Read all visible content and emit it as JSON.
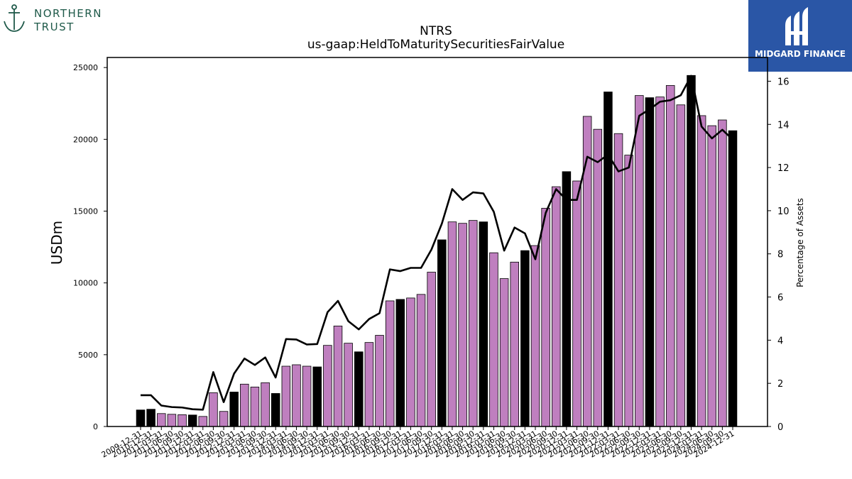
{
  "branding": {
    "left_logo_line1": "NORTHERN",
    "left_logo_line2": "TRUST",
    "right_logo_text": "MIDGARD FINANCE"
  },
  "chart_data": {
    "type": "bar",
    "title": "NTRS",
    "subtitle": "us-gaap:HeldToMaturitySecuritiesFairValue",
    "ylabel": "USDm",
    "y2label": "Percentage of Assets",
    "ylim": [
      0,
      25700
    ],
    "y2lim": [
      0,
      17.1
    ],
    "yticks": [
      0,
      5000,
      10000,
      15000,
      20000,
      25000
    ],
    "y2ticks": [
      0,
      2,
      4,
      6,
      8,
      10,
      12,
      14,
      16
    ],
    "colors": {
      "bar_default": "#bf7fbf",
      "bar_highlight": "#000000",
      "line": "#000000"
    },
    "categories": [
      "2009-12-31",
      "2010-12-31",
      "2011-03-31",
      "2011-06-30",
      "2011-09-30",
      "2011-12-31",
      "2012-03-31",
      "2012-06-30",
      "2012-09-30",
      "2012-12-31",
      "2013-03-31",
      "2013-06-30",
      "2013-09-30",
      "2013-12-31",
      "2014-03-31",
      "2014-06-30",
      "2014-09-30",
      "2014-12-31",
      "2015-03-31",
      "2015-06-30",
      "2015-09-30",
      "2015-12-31",
      "2016-03-31",
      "2016-06-30",
      "2016-09-30",
      "2016-12-31",
      "2017-03-31",
      "2017-06-30",
      "2017-09-30",
      "2017-12-31",
      "2018-03-31",
      "2018-06-30",
      "2018-09-30",
      "2018-12-31",
      "2019-03-31",
      "2019-06-30",
      "2019-09-30",
      "2019-12-31",
      "2020-03-31",
      "2020-06-30",
      "2020-09-30",
      "2020-12-31",
      "2021-03-31",
      "2021-06-30",
      "2021-09-30",
      "2021-12-31",
      "2022-03-31",
      "2022-06-30",
      "2022-09-30",
      "2022-12-31",
      "2023-03-31",
      "2023-06-30",
      "2023-09-30",
      "2023-12-31",
      "2024-03-31",
      "2024-06-30",
      "2024-09-30",
      "2024-12-31"
    ],
    "highlight": [
      true,
      true,
      false,
      false,
      false,
      true,
      false,
      false,
      false,
      true,
      false,
      false,
      false,
      true,
      false,
      false,
      false,
      true,
      false,
      false,
      false,
      true,
      false,
      false,
      false,
      true,
      false,
      false,
      false,
      true,
      false,
      false,
      false,
      true,
      false,
      false,
      false,
      true,
      false,
      false,
      false,
      true,
      false,
      false,
      false,
      true,
      false,
      false,
      false,
      true,
      false,
      false,
      false,
      true,
      false,
      false,
      false,
      true
    ],
    "series": [
      {
        "name": "USDm",
        "type": "bar",
        "axis": "left",
        "values": [
          1150,
          1200,
          900,
          850,
          820,
          800,
          700,
          2350,
          1050,
          2400,
          2950,
          2750,
          3050,
          2300,
          4200,
          4300,
          4200,
          4150,
          5650,
          7000,
          5800,
          5200,
          5850,
          6350,
          8750,
          8850,
          8950,
          9200,
          10750,
          13000,
          14250,
          14150,
          14350,
          14250,
          12100,
          10300,
          11450,
          12250,
          12600,
          15200,
          16700,
          17750,
          17100,
          21600,
          20700,
          23300,
          20400,
          18900,
          23050,
          22900,
          22950,
          23750,
          22400,
          24450,
          21650,
          20950,
          21350,
          20600
        ]
      },
      {
        "name": "Percentage of Assets",
        "type": "line",
        "axis": "right",
        "values": [
          1.45,
          1.45,
          0.97,
          0.9,
          0.88,
          0.8,
          0.78,
          2.52,
          1.13,
          2.45,
          3.15,
          2.85,
          3.2,
          2.27,
          4.05,
          4.03,
          3.8,
          3.82,
          5.3,
          5.82,
          4.88,
          4.5,
          4.98,
          5.25,
          7.28,
          7.2,
          7.35,
          7.35,
          8.2,
          9.4,
          11.0,
          10.5,
          10.85,
          10.8,
          9.95,
          8.15,
          9.22,
          8.95,
          7.75,
          9.9,
          11.0,
          10.5,
          10.5,
          12.5,
          12.25,
          12.6,
          11.82,
          12.0,
          14.4,
          14.7,
          15.05,
          15.12,
          15.35,
          16.25,
          13.9,
          13.35,
          13.75,
          13.3
        ]
      }
    ],
    "legend": "none",
    "grid": false
  }
}
